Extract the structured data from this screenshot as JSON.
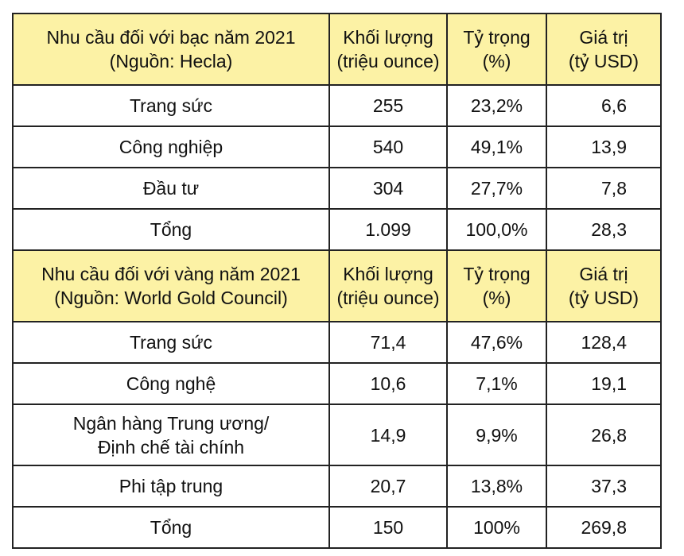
{
  "silver": {
    "header": {
      "title_line1": "Nhu cầu đối với bạc năm 2021",
      "title_line2": "(Nguồn: Hecla)",
      "volume_line1": "Khối lượng",
      "volume_line2": "(triệu ounce)",
      "share_line1": "Tỷ trọng",
      "share_line2": "(%)",
      "value_line1": "Giá trị",
      "value_line2": "(tỷ USD)"
    },
    "rows": [
      {
        "label": "Trang sức",
        "volume": "255",
        "share": "23,2%",
        "value": "6,6"
      },
      {
        "label": "Công nghiệp",
        "volume": "540",
        "share": "49,1%",
        "value": "13,9"
      },
      {
        "label": "Đầu tư",
        "volume": "304",
        "share": "27,7%",
        "value": "7,8"
      },
      {
        "label": "Tổng",
        "volume": "1.099",
        "share": "100,0%",
        "value": "28,3"
      }
    ]
  },
  "gold": {
    "header": {
      "title_line1": "Nhu cầu đối với vàng năm 2021",
      "title_line2": "(Nguồn: World Gold Council)",
      "volume_line1": "Khối lượng",
      "volume_line2": "(triệu ounce)",
      "share_line1": "Tỷ trọng",
      "share_line2": "(%)",
      "value_line1": "Giá trị",
      "value_line2": "(tỷ USD)"
    },
    "rows": [
      {
        "label": "Trang sức",
        "volume": "71,4",
        "share": "47,6%",
        "value": "128,4"
      },
      {
        "label": "Công nghệ",
        "volume": "10,6",
        "share": "7,1%",
        "value": "19,1"
      },
      {
        "label_line1": "Ngân hàng Trung ương/",
        "label_line2": "Định chế tài chính",
        "volume": "14,9",
        "share": "9,9%",
        "value": "26,8"
      },
      {
        "label": "Phi tập trung",
        "volume": "20,7",
        "share": "13,8%",
        "value": "37,3"
      },
      {
        "label": "Tổng",
        "volume": "150",
        "share": "100%",
        "value": "269,8"
      }
    ]
  }
}
